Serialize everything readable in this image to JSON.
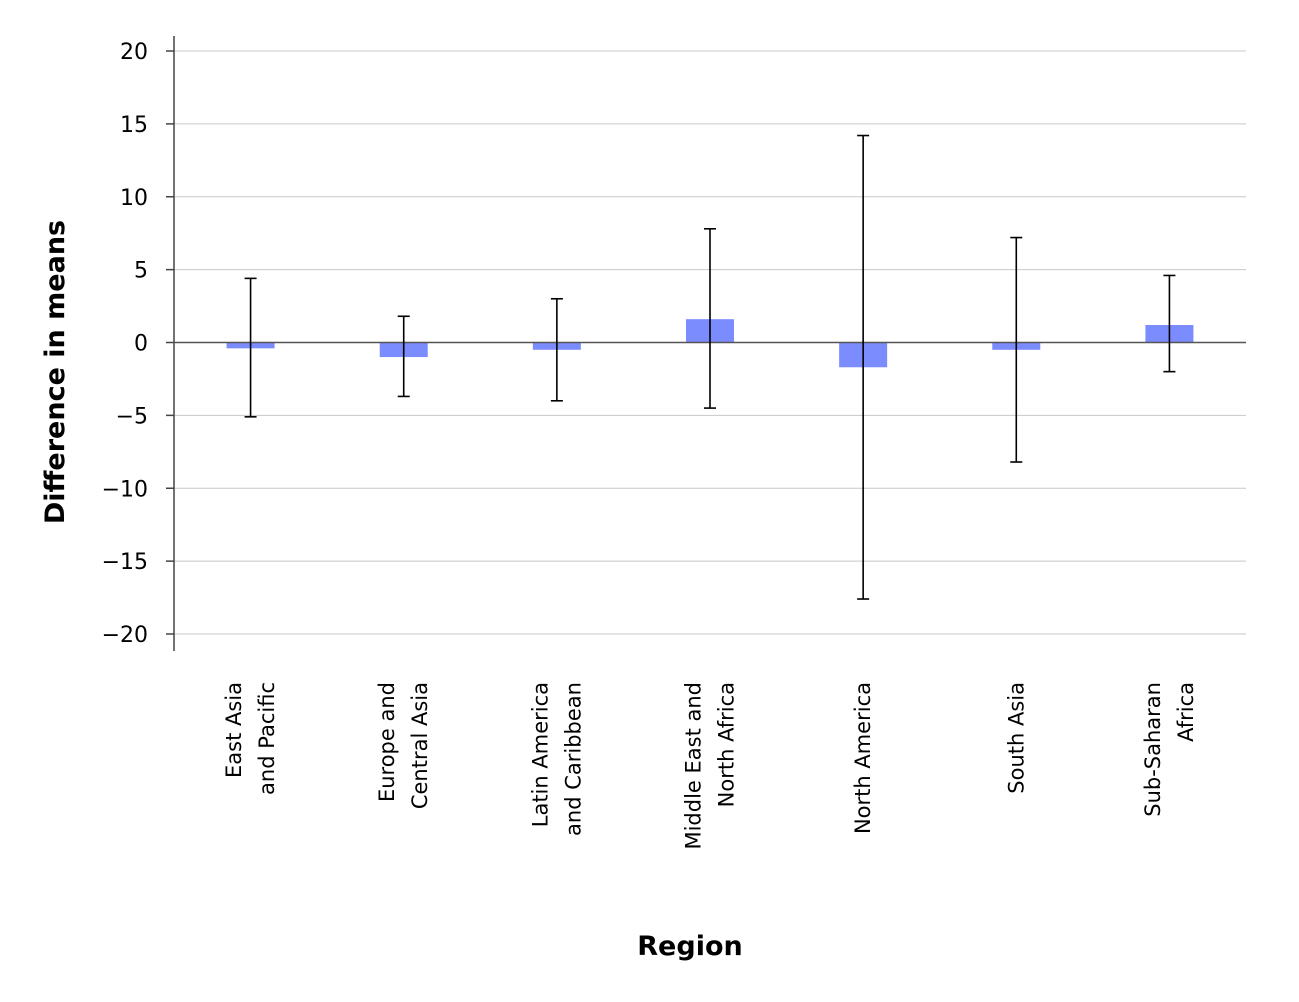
{
  "chart_data": {
    "type": "bar",
    "title": "",
    "xlabel": "Region",
    "ylabel": "Difference in means",
    "ylim": [
      -20,
      20
    ],
    "yticks": [
      20,
      15,
      10,
      5,
      0,
      -5,
      -10,
      -15,
      -20
    ],
    "ytick_labels": [
      "20",
      "15",
      "10",
      "5",
      "0",
      "−5",
      "−10",
      "−15",
      "−20"
    ],
    "grid": true,
    "bar_color": "#7b8cff",
    "categories": [
      {
        "lines": [
          "East Asia",
          "and Pacific"
        ]
      },
      {
        "lines": [
          "Europe and",
          "Central Asia"
        ]
      },
      {
        "lines": [
          "Latin America",
          "and Caribbean"
        ]
      },
      {
        "lines": [
          "Middle East and",
          "North Africa"
        ]
      },
      {
        "lines": [
          "North America"
        ]
      },
      {
        "lines": [
          "South Asia"
        ]
      },
      {
        "lines": [
          "Sub-Saharan",
          "Africa"
        ]
      }
    ],
    "values": [
      -0.4,
      -1.0,
      -0.5,
      1.6,
      -1.7,
      -0.5,
      1.2
    ],
    "error_low": [
      -5.1,
      -3.7,
      -4.0,
      -4.5,
      -17.6,
      -8.2,
      -2.0
    ],
    "error_high": [
      4.4,
      1.8,
      3.0,
      7.8,
      14.2,
      7.2,
      4.6
    ]
  }
}
